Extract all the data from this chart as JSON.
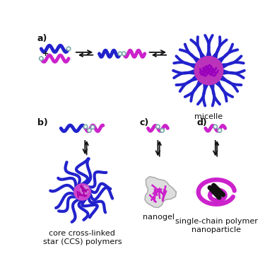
{
  "blue_color": "#2222cc",
  "magenta_color": "#cc22cc",
  "black_color": "#111111",
  "gray_color": "#aaaaaa",
  "light_gray": "#cccccc",
  "teal_color": "#7aabab",
  "bg_color": "#ffffff",
  "label_a": "a)",
  "label_b": "b)",
  "label_c": "c)",
  "label_d": "d)",
  "label_micelle": "micelle",
  "label_ccs": "core cross-linked\nstar (CCS) polymers",
  "label_nanogel": "nanogel",
  "label_scnp": "single-chain polymer\nnanoparticle",
  "font_size_label": 9,
  "font_size_text": 8
}
